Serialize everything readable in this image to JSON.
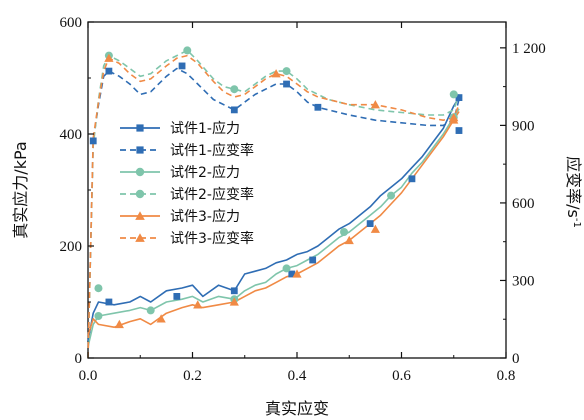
{
  "chart_data": {
    "type": "line",
    "xlabel": "真实应变",
    "ylabel_left": "真实应力/kPa",
    "ylabel_right": "应变率/s",
    "ylabel_right_sup": "-1",
    "xlim": [
      0,
      0.8
    ],
    "ylim_left": [
      0,
      600
    ],
    "ylim_right": [
      0,
      1300
    ],
    "xticks": [
      "0.0",
      "0.2",
      "0.4",
      "0.6",
      "0.8"
    ],
    "xtick_values": [
      0,
      0.2,
      0.4,
      0.6,
      0.8
    ],
    "yticks_left": [
      "0",
      "200",
      "400",
      "600"
    ],
    "ytick_left_values": [
      0,
      200,
      400,
      600
    ],
    "yticks_right": [
      "0",
      "300",
      "600",
      "900",
      "1 200"
    ],
    "ytick_right_values": [
      0,
      300,
      600,
      900,
      1200
    ],
    "legend_position": "center-left",
    "grid": false,
    "series": [
      {
        "name": "试件1-应力",
        "axis": "left",
        "dash": false,
        "marker": "square",
        "color": "#2f6db4",
        "x": [
          0.0,
          0.01,
          0.02,
          0.05,
          0.08,
          0.1,
          0.12,
          0.15,
          0.18,
          0.2,
          0.22,
          0.25,
          0.28,
          0.3,
          0.32,
          0.34,
          0.36,
          0.38,
          0.4,
          0.42,
          0.44,
          0.46,
          0.48,
          0.5,
          0.52,
          0.54,
          0.56,
          0.58,
          0.6,
          0.62,
          0.64,
          0.66,
          0.68,
          0.7,
          0.71
        ],
        "y": [
          30,
          80,
          100,
          95,
          100,
          110,
          100,
          120,
          125,
          130,
          110,
          130,
          120,
          150,
          155,
          160,
          170,
          175,
          185,
          190,
          200,
          215,
          230,
          240,
          255,
          270,
          290,
          305,
          320,
          340,
          360,
          385,
          410,
          450,
          465
        ],
        "mx": [
          0.04,
          0.17,
          0.28,
          0.39,
          0.43,
          0.54,
          0.62,
          0.71
        ],
        "my": [
          100,
          110,
          120,
          150,
          175,
          240,
          320,
          465
        ]
      },
      {
        "name": "试件1-应变率",
        "axis": "right",
        "dash": true,
        "marker": "square",
        "color": "#2f6db4",
        "x": [
          0.0,
          0.01,
          0.02,
          0.03,
          0.04,
          0.06,
          0.08,
          0.1,
          0.12,
          0.15,
          0.17,
          0.19,
          0.21,
          0.24,
          0.26,
          0.28,
          0.3,
          0.32,
          0.34,
          0.36,
          0.38,
          0.4,
          0.42,
          0.44,
          0.46,
          0.5,
          0.55,
          0.6,
          0.65,
          0.68,
          0.7,
          0.71
        ],
        "y": [
          0,
          840,
          980,
          1090,
          1110,
          1090,
          1060,
          1020,
          1030,
          1090,
          1120,
          1100,
          1060,
          1000,
          980,
          960,
          990,
          1020,
          1040,
          1060,
          1060,
          1030,
          990,
          970,
          960,
          940,
          920,
          910,
          900,
          900,
          920,
          1000
        ],
        "mx": [
          0.01,
          0.04,
          0.18,
          0.28,
          0.38,
          0.44,
          0.71
        ],
        "my": [
          840,
          1110,
          1130,
          960,
          1060,
          970,
          880
        ]
      },
      {
        "name": "试件2-应力",
        "axis": "left",
        "dash": false,
        "marker": "circle",
        "color": "#7fc5ab",
        "x": [
          0.0,
          0.01,
          0.02,
          0.05,
          0.08,
          0.1,
          0.12,
          0.15,
          0.18,
          0.2,
          0.22,
          0.25,
          0.28,
          0.3,
          0.32,
          0.34,
          0.36,
          0.38,
          0.4,
          0.42,
          0.44,
          0.46,
          0.48,
          0.5,
          0.52,
          0.54,
          0.56,
          0.58,
          0.6,
          0.62,
          0.64,
          0.66,
          0.68,
          0.7,
          0.71
        ],
        "y": [
          20,
          60,
          75,
          80,
          85,
          90,
          85,
          100,
          105,
          110,
          100,
          110,
          105,
          120,
          130,
          135,
          150,
          160,
          165,
          175,
          185,
          200,
          215,
          225,
          240,
          255,
          270,
          290,
          305,
          330,
          350,
          375,
          400,
          430,
          445
        ],
        "mx": [
          0.02,
          0.12,
          0.28,
          0.38,
          0.49,
          0.58,
          0.7
        ],
        "my": [
          75,
          85,
          105,
          160,
          225,
          290,
          430
        ]
      },
      {
        "name": "试件2-应变率",
        "axis": "right",
        "dash": true,
        "marker": "circle",
        "color": "#7fc5ab",
        "x": [
          0.0,
          0.01,
          0.02,
          0.03,
          0.04,
          0.06,
          0.08,
          0.1,
          0.12,
          0.15,
          0.17,
          0.19,
          0.21,
          0.24,
          0.26,
          0.28,
          0.3,
          0.32,
          0.34,
          0.36,
          0.38,
          0.4,
          0.42,
          0.44,
          0.46,
          0.5,
          0.55,
          0.6,
          0.65,
          0.68,
          0.7,
          0.71
        ],
        "y": [
          0,
          820,
          1000,
          1130,
          1170,
          1150,
          1120,
          1090,
          1100,
          1150,
          1170,
          1190,
          1150,
          1080,
          1050,
          1040,
          1030,
          1060,
          1090,
          1110,
          1110,
          1080,
          1040,
          1020,
          1000,
          980,
          960,
          950,
          940,
          940,
          960,
          1020
        ],
        "mx": [
          0.02,
          0.04,
          0.19,
          0.28,
          0.38,
          0.7
        ],
        "my": [
          270,
          1170,
          1190,
          1040,
          1110,
          1020
        ]
      },
      {
        "name": "试件3-应力",
        "axis": "left",
        "dash": false,
        "marker": "triangle",
        "color": "#f08a45",
        "x": [
          0.0,
          0.01,
          0.02,
          0.05,
          0.08,
          0.1,
          0.12,
          0.15,
          0.18,
          0.2,
          0.22,
          0.25,
          0.28,
          0.3,
          0.32,
          0.34,
          0.36,
          0.38,
          0.4,
          0.42,
          0.44,
          0.46,
          0.48,
          0.5,
          0.52,
          0.54,
          0.56,
          0.58,
          0.6,
          0.62,
          0.64,
          0.66,
          0.68,
          0.7,
          0.71
        ],
        "y": [
          40,
          70,
          60,
          55,
          65,
          70,
          60,
          80,
          90,
          95,
          90,
          95,
          100,
          110,
          120,
          125,
          135,
          145,
          150,
          160,
          170,
          185,
          200,
          210,
          225,
          240,
          255,
          275,
          295,
          320,
          345,
          370,
          395,
          425,
          440
        ],
        "mx": [
          0.06,
          0.14,
          0.21,
          0.28,
          0.4,
          0.5,
          0.55,
          0.7
        ],
        "my": [
          60,
          70,
          95,
          100,
          150,
          210,
          230,
          425
        ]
      },
      {
        "name": "试件3-应变率",
        "axis": "right",
        "dash": true,
        "marker": "triangle",
        "color": "#f08a45",
        "x": [
          0.0,
          0.01,
          0.02,
          0.03,
          0.04,
          0.06,
          0.08,
          0.1,
          0.12,
          0.15,
          0.17,
          0.19,
          0.21,
          0.24,
          0.26,
          0.28,
          0.3,
          0.32,
          0.34,
          0.36,
          0.38,
          0.4,
          0.42,
          0.44,
          0.46,
          0.5,
          0.55,
          0.6,
          0.65,
          0.68,
          0.7,
          0.71
        ],
        "y": [
          0,
          850,
          990,
          1110,
          1160,
          1140,
          1100,
          1070,
          1080,
          1130,
          1160,
          1170,
          1140,
          1070,
          1030,
          1010,
          1020,
          1050,
          1080,
          1100,
          1090,
          1060,
          1030,
          1010,
          1000,
          980,
          980,
          960,
          930,
          920,
          930,
          980
        ],
        "mx": [
          0.04,
          0.36,
          0.55,
          0.7
        ],
        "my": [
          1160,
          1100,
          980,
          930
        ]
      }
    ]
  }
}
